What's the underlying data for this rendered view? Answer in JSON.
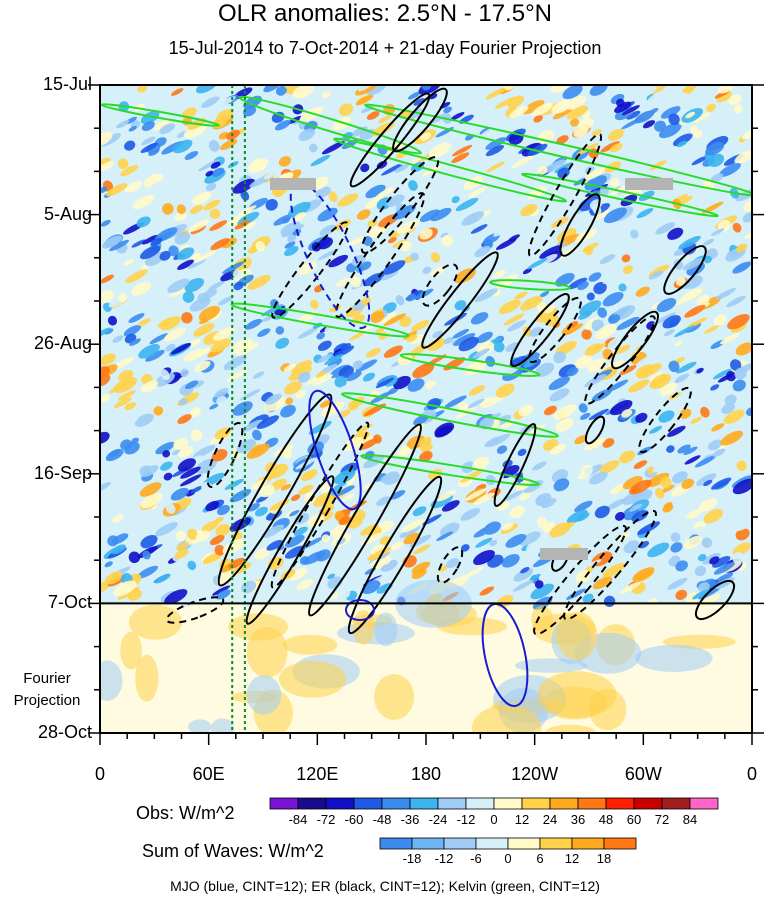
{
  "title": "OLR anomalies: 2.5°N - 17.5°N",
  "subtitle": "15-Jul-2014 to 7-Oct-2014 + 21-day Fourier Projection",
  "footnote": "MJO (blue, CINT=12); ER (black, CINT=12); Kelvin (green, CINT=12)",
  "fourier_label": [
    "Fourier",
    "Projection"
  ],
  "chart_data": {
    "type": "heatmap",
    "title": "OLR anomalies: 2.5°N - 17.5°N",
    "subtitle": "15-Jul-2014 to 7-Oct-2014 + 21-day Fourier Projection",
    "x_axis": {
      "ticks": [
        {
          "lon": 0,
          "label": "0"
        },
        {
          "lon": 60,
          "label": "60E"
        },
        {
          "lon": 120,
          "label": "120E"
        },
        {
          "lon": 180,
          "label": "180"
        },
        {
          "lon": 240,
          "label": "120W"
        },
        {
          "lon": 300,
          "label": "60W"
        },
        {
          "lon": 360,
          "label": "0"
        }
      ],
      "range": [
        0,
        360
      ]
    },
    "y_axis": {
      "ticks": [
        {
          "day": 0,
          "label": "15-Jul"
        },
        {
          "day": 21,
          "label": "5-Aug"
        },
        {
          "day": 42,
          "label": "26-Aug"
        },
        {
          "day": 63,
          "label": "16-Sep"
        },
        {
          "day": 84,
          "label": "7-Oct"
        },
        {
          "day": 105,
          "label": "28-Oct"
        }
      ],
      "range": [
        0,
        105
      ],
      "projection_start_day": 84
    },
    "mjo_index_lines_lon": [
      73,
      80
    ],
    "obs_colorbar": {
      "title": "Obs: W/m^2",
      "labels": [
        "-84",
        "-72",
        "-60",
        "-48",
        "-36",
        "-24",
        "-12",
        "0",
        "12",
        "24",
        "36",
        "48",
        "60",
        "72",
        "84"
      ],
      "colors": [
        "#7a14d4",
        "#1a0a8c",
        "#1010c8",
        "#1e5ae6",
        "#3c8cf0",
        "#3cb4f0",
        "#a0ccf5",
        "#d6f0fa",
        "#fffac8",
        "#ffd24a",
        "#ffaa1e",
        "#ff7814",
        "#ff1e00",
        "#c80000",
        "#a01e1e",
        "#ff64c8"
      ]
    },
    "waves_colorbar": {
      "title": "Sum of Waves: W/m^2",
      "labels": [
        "-18",
        "-12",
        "-6",
        "0",
        "6",
        "12",
        "18"
      ],
      "colors": [
        "#3c8cf0",
        "#6eb4f5",
        "#a0ccf5",
        "#d6f0fa",
        "#fffac8",
        "#ffd24a",
        "#ffaa1e",
        "#ff7814"
      ]
    },
    "legend": [
      {
        "name": "MJO",
        "color": "#1a1ad2",
        "cint": 12
      },
      {
        "name": "ER",
        "color": "#000000",
        "cint": 12
      },
      {
        "name": "Kelvin",
        "color": "#28dc28",
        "cint": 12
      }
    ]
  }
}
